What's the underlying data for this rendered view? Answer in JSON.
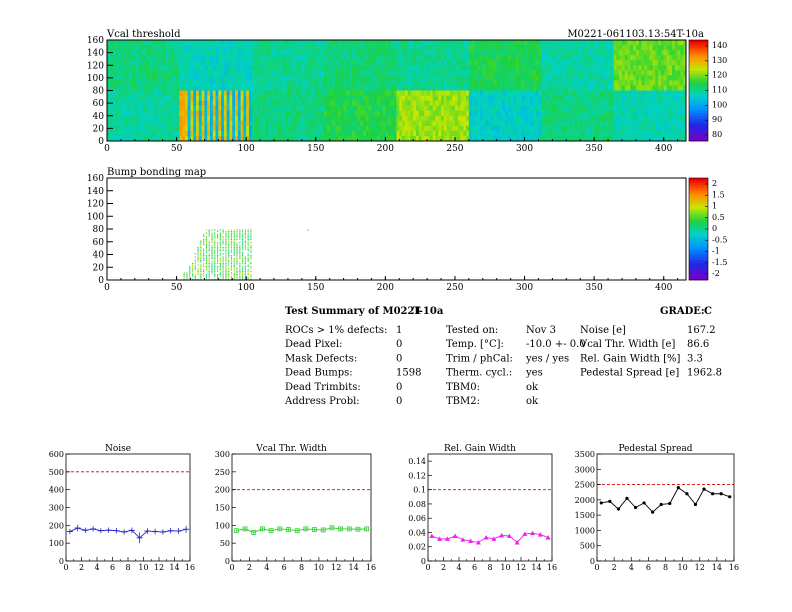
{
  "module_id": "M0221-061103.13:54T-10a",
  "chart_data": [
    {
      "type": "heatmap",
      "title": "Vcal threshold",
      "xlim": [
        0,
        416
      ],
      "ylim": [
        0,
        160
      ],
      "x_ticks": [
        "0",
        "50",
        "100",
        "150",
        "200",
        "250",
        "300",
        "350",
        "400"
      ],
      "y_ticks": [
        "0",
        "20",
        "40",
        "60",
        "80",
        "100",
        "120",
        "140",
        "160"
      ],
      "palette_scale": [
        "80",
        "90",
        "100",
        "110",
        "120",
        "130",
        "140"
      ],
      "roc_grid": {
        "columns": 8,
        "rows": 2,
        "roc_width": 52,
        "roc_height": 80
      },
      "roc_mean_levels": {
        "top": [
          0.52,
          0.46,
          0.5,
          0.53,
          0.5,
          0.56,
          0.48,
          0.64
        ],
        "bottom": [
          0.49,
          0.4,
          0.52,
          0.57,
          0.68,
          0.45,
          0.52,
          0.47
        ]
      },
      "features": "ROC at x 52-104, y 0-80: saturated yellow/orange region with column stripes"
    },
    {
      "type": "heatmap",
      "title": "Bump bonding map",
      "xlim": [
        0,
        416
      ],
      "ylim": [
        0,
        160
      ],
      "x_ticks": [
        "0",
        "50",
        "100",
        "150",
        "200",
        "250",
        "300",
        "350",
        "400"
      ],
      "y_ticks": [
        "0",
        "20",
        "40",
        "60",
        "80",
        "100",
        "120",
        "140",
        "160"
      ],
      "palette_scale": [
        "-2",
        "-1.5",
        "-1",
        "-0.5",
        "0",
        "0.5",
        "1",
        "1.5",
        "2"
      ],
      "occupied_region": {
        "x": [
          55,
          104
        ],
        "y": [
          0,
          79
        ]
      }
    },
    {
      "type": "line",
      "title": "Noise",
      "x": [
        0,
        1,
        2,
        3,
        4,
        5,
        6,
        7,
        8,
        9,
        10,
        11,
        12,
        13,
        14,
        15
      ],
      "values": [
        165,
        185,
        172,
        180,
        170,
        173,
        170,
        163,
        172,
        130,
        168,
        165,
        163,
        170,
        168,
        178
      ],
      "errors": [
        15,
        18,
        15,
        15,
        14,
        15,
        15,
        15,
        16,
        30,
        16,
        16,
        15,
        15,
        16,
        20
      ],
      "xlim": [
        0,
        16
      ],
      "ylim": [
        0,
        600
      ],
      "y_ticks": [
        "0",
        "100",
        "200",
        "300",
        "400",
        "500",
        "600"
      ],
      "x_ticks": [
        "0",
        "2",
        "4",
        "6",
        "8",
        "10",
        "12",
        "14",
        "16"
      ],
      "threshold": 500,
      "color": "#2222cc",
      "marker": "cross"
    },
    {
      "type": "line",
      "title": "Vcal Thr. Width",
      "x": [
        0,
        1,
        2,
        3,
        4,
        5,
        6,
        7,
        8,
        9,
        10,
        11,
        12,
        13,
        14,
        15
      ],
      "values": [
        85,
        90,
        80,
        90,
        85,
        90,
        88,
        85,
        90,
        88,
        87,
        93,
        90,
        90,
        89,
        90
      ],
      "errors": [
        4,
        4,
        4,
        4,
        4,
        4,
        4,
        4,
        4,
        4,
        4,
        4,
        4,
        4,
        4,
        4
      ],
      "xlim": [
        0,
        16
      ],
      "ylim": [
        0,
        300
      ],
      "y_ticks": [
        "0",
        "50",
        "100",
        "150",
        "200",
        "250",
        "300"
      ],
      "x_ticks": [
        "0",
        "2",
        "4",
        "6",
        "8",
        "10",
        "12",
        "14",
        "16"
      ],
      "threshold": 200,
      "color": "#33cc33",
      "marker": "open-square"
    },
    {
      "type": "line",
      "title": "Rel. Gain Width",
      "x": [
        0,
        1,
        2,
        3,
        4,
        5,
        6,
        7,
        8,
        9,
        10,
        11,
        12,
        13,
        14,
        15
      ],
      "values": [
        0.035,
        0.031,
        0.031,
        0.035,
        0.03,
        0.028,
        0.026,
        0.033,
        0.031,
        0.036,
        0.035,
        0.026,
        0.038,
        0.039,
        0.037,
        0.033
      ],
      "xlim": [
        0,
        16
      ],
      "ylim": [
        0,
        0.15
      ],
      "y_ticks": [
        "0",
        "0.02",
        "0.04",
        "0.06",
        "0.08",
        "0.1",
        "0.12",
        "0.14"
      ],
      "x_ticks": [
        "0",
        "2",
        "4",
        "6",
        "8",
        "10",
        "12",
        "14",
        "16"
      ],
      "threshold": 0.1,
      "color": "#ee22ee",
      "marker": "triangle"
    },
    {
      "type": "line",
      "title": "Pedestal Spread",
      "x": [
        0,
        1,
        2,
        3,
        4,
        5,
        6,
        7,
        8,
        9,
        10,
        11,
        12,
        13,
        14,
        15
      ],
      "values": [
        1900,
        1950,
        1700,
        2050,
        1750,
        1900,
        1600,
        1850,
        1880,
        2400,
        2200,
        1850,
        2350,
        2200,
        2200,
        2100
      ],
      "xlim": [
        0,
        16
      ],
      "ylim": [
        0,
        3500
      ],
      "y_ticks": [
        "0",
        "500",
        "1000",
        "1500",
        "2000",
        "2500",
        "3000",
        "3500"
      ],
      "x_ticks": [
        "0",
        "2",
        "4",
        "6",
        "8",
        "10",
        "12",
        "14",
        "16"
      ],
      "threshold": 2500,
      "color": "#000000",
      "marker": "dot"
    }
  ],
  "summary": {
    "title": "Test Summary of M0221",
    "temp_tag": "T-10a",
    "grade_label": "GRADE:",
    "grade_value": "C",
    "col1": [
      {
        "label": "ROCs > 1% defects:",
        "value": "1"
      },
      {
        "label": "Dead Pixel:",
        "value": "0"
      },
      {
        "label": "Mask Defects:",
        "value": "0"
      },
      {
        "label": "Dead Bumps:",
        "value": "1598"
      },
      {
        "label": "Dead Trimbits:",
        "value": "0"
      },
      {
        "label": "Address Probl:",
        "value": "0"
      }
    ],
    "col2": [
      {
        "label": "Tested on:",
        "value": "Nov 3"
      },
      {
        "label": "Temp. [°C]:",
        "value": "-10.0 +- 0.0"
      },
      {
        "label": "Trim / phCal:",
        "value": "yes / yes"
      },
      {
        "label": "Therm. cycl.:",
        "value": "yes"
      },
      {
        "label": "TBM0:",
        "value": "ok"
      },
      {
        "label": "TBM2:",
        "value": "ok"
      }
    ],
    "col3": [
      {
        "label": "Noise [e]",
        "value": "167.2"
      },
      {
        "label": "Vcal Thr. Width [e]",
        "value": "86.6"
      },
      {
        "label": "Rel. Gain Width [%]",
        "value": "3.3"
      },
      {
        "label": "Pedestal Spread [e]",
        "value": "1962.8"
      }
    ]
  }
}
